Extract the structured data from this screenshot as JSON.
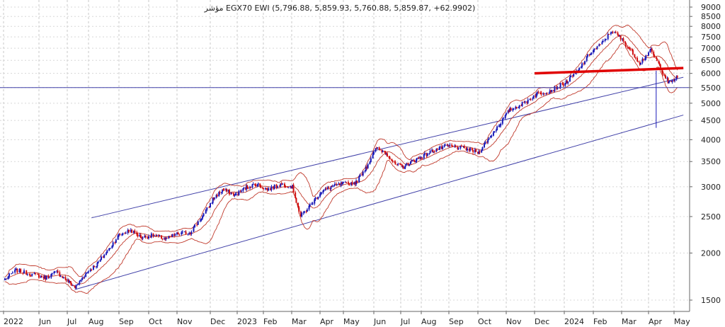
{
  "chart_data": {
    "type": "candlestick",
    "title": "مؤشر EGX70 EWI (5,796.88, 5,859.93, 5,760.88, 5,859.87, +62.9902)",
    "y_scale": "log",
    "ylim": [
      1400,
      9300
    ],
    "y_ticks": [
      "9000",
      "8500",
      "8000",
      "7500",
      "7000",
      "6500",
      "6000",
      "5500",
      "5000",
      "4500",
      "4000",
      "3500",
      "3000",
      "2500",
      "2000",
      "1500"
    ],
    "y_tick_values": [
      9000,
      8500,
      8000,
      7500,
      7000,
      6500,
      6000,
      5500,
      5000,
      4500,
      4000,
      3500,
      3000,
      2500,
      2000,
      1500
    ],
    "x_ticks": [
      "2022",
      "Jun",
      "Jul",
      "Aug",
      "Sep",
      "Oct",
      "Nov",
      "Dec",
      "2023",
      "Feb",
      "Mar",
      "Apr",
      "May",
      "Jun",
      "Jul",
      "Aug",
      "Sep",
      "Oct",
      "Nov",
      "Dec",
      "2024",
      "Feb",
      "Mar",
      "Apr",
      "May"
    ],
    "x_tick_months": [
      "2022-05",
      "2022-06",
      "2022-07",
      "2022-08",
      "2022-09",
      "2022-10",
      "2022-11",
      "2022-12",
      "2023-01",
      "2023-02",
      "2023-03",
      "2023-04",
      "2023-05",
      "2023-06",
      "2023-07",
      "2023-08",
      "2023-09",
      "2023-10",
      "2023-11",
      "2023-12",
      "2024-01",
      "2024-02",
      "2024-03",
      "2024-04",
      "2024-05"
    ],
    "grid": true,
    "close_path": [
      [
        "2022-05-02",
        1700
      ],
      [
        "2022-05-12",
        1800
      ],
      [
        "2022-05-25",
        1760
      ],
      [
        "2022-06-08",
        1720
      ],
      [
        "2022-06-20",
        1780
      ],
      [
        "2022-07-03",
        1680
      ],
      [
        "2022-07-13",
        1620
      ],
      [
        "2022-07-28",
        1760
      ],
      [
        "2022-08-10",
        1870
      ],
      [
        "2022-08-22",
        2050
      ],
      [
        "2022-09-01",
        2230
      ],
      [
        "2022-09-13",
        2300
      ],
      [
        "2022-09-24",
        2200
      ],
      [
        "2022-10-06",
        2230
      ],
      [
        "2022-10-20",
        2180
      ],
      [
        "2022-11-02",
        2250
      ],
      [
        "2022-11-13",
        2270
      ],
      [
        "2022-11-24",
        2500
      ],
      [
        "2022-12-05",
        2800
      ],
      [
        "2022-12-16",
        2950
      ],
      [
        "2022-12-30",
        2850
      ],
      [
        "2023-01-13",
        3000
      ],
      [
        "2023-01-25",
        3050
      ],
      [
        "2023-02-05",
        2950
      ],
      [
        "2023-02-19",
        3050
      ],
      [
        "2023-03-02",
        3000
      ],
      [
        "2023-03-11",
        2500
      ],
      [
        "2023-03-20",
        2650
      ],
      [
        "2023-04-02",
        2900
      ],
      [
        "2023-04-16",
        3000
      ],
      [
        "2023-04-30",
        3050
      ],
      [
        "2023-05-14",
        3080
      ],
      [
        "2023-05-25",
        3400
      ],
      [
        "2023-06-04",
        3800
      ],
      [
        "2023-06-15",
        3700
      ],
      [
        "2023-06-24",
        3450
      ],
      [
        "2023-07-04",
        3380
      ],
      [
        "2023-07-18",
        3500
      ],
      [
        "2023-08-01",
        3600
      ],
      [
        "2023-08-15",
        3750
      ],
      [
        "2023-09-01",
        3850
      ],
      [
        "2023-09-16",
        3800
      ],
      [
        "2023-10-02",
        3700
      ],
      [
        "2023-10-12",
        4000
      ],
      [
        "2023-10-25",
        4400
      ],
      [
        "2023-11-05",
        4800
      ],
      [
        "2023-11-20",
        5000
      ],
      [
        "2023-12-04",
        5300
      ],
      [
        "2023-12-18",
        5400
      ],
      [
        "2024-01-04",
        5700
      ],
      [
        "2024-01-16",
        6100
      ],
      [
        "2024-01-29",
        6800
      ],
      [
        "2024-02-10",
        7200
      ],
      [
        "2024-02-20",
        7800
      ],
      [
        "2024-02-28",
        7500
      ],
      [
        "2024-03-10",
        7000
      ],
      [
        "2024-03-22",
        6400
      ],
      [
        "2024-04-04",
        6900
      ],
      [
        "2024-04-14",
        6300
      ],
      [
        "2024-04-25",
        5650
      ],
      [
        "2024-05-05",
        5860
      ]
    ],
    "annotations": {
      "horizontal_line": 5500,
      "red_trendline": [
        [
          "2023-12-01",
          6000
        ],
        [
          "2024-05-12",
          6200
        ]
      ],
      "spike": {
        "date": "2024-04-10",
        "high": 6100,
        "low": 4300
      },
      "channel_upper": [
        [
          "2022-08-04",
          2480
        ],
        [
          "2024-05-12",
          5860
        ]
      ],
      "channel_lower": [
        [
          "2022-07-12",
          1600
        ],
        [
          "2024-05-12",
          4650
        ]
      ]
    }
  }
}
